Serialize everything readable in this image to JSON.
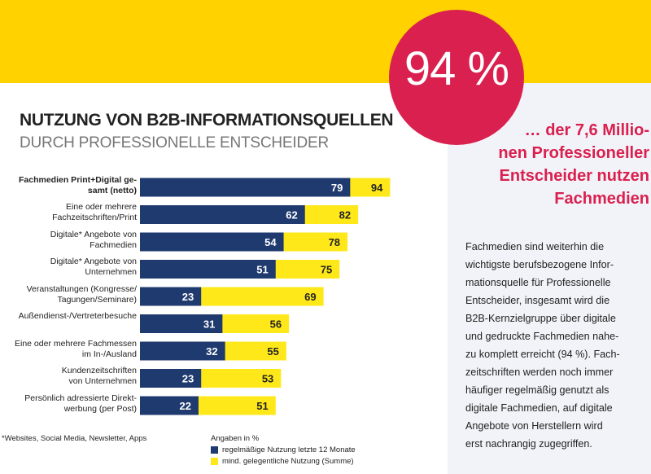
{
  "highlight": {
    "percent": "94 %",
    "headline_lines": [
      "… der 7,6 Millio-",
      "nen Professioneller",
      "Entscheider nutzen",
      "Fachmedien"
    ],
    "body_lines": [
      "Fachmedien sind weiterhin die",
      "wichtigste berufsbezogene Infor-",
      "mationsquelle für Professionelle",
      "Entscheider, insgesamt wird die",
      "B2B-Kernzielgruppe über digitale",
      "und gedruckte Fachmedien nahe-",
      "zu komplett erreicht (94 %). Fach-",
      "zeitschriften werden noch immer",
      "häufiger regelmäßig genutzt als",
      "digitale Fachmedien, auf digitale",
      "Angebote von Herstellern wird",
      "erst nachrangig zugegriffen."
    ]
  },
  "colors": {
    "accent_yellow": "#ffd200",
    "accent_pink": "#d9204f",
    "bar_blue": "#1f3a6e",
    "bar_yellow": "#ffe81a",
    "panel_bg": "#f2f3f8"
  },
  "chart_data": {
    "type": "bar",
    "orientation": "horizontal",
    "title": "NUTZUNG VON B2B-INFORMATIONSQUELLEN",
    "subtitle": "DURCH PROFESSIONELLE ENTSCHEIDER",
    "categories": [
      {
        "lines": [
          "Fachmedien Print+Digital ge-",
          "samt (netto)"
        ],
        "bold": true
      },
      {
        "lines": [
          "Eine oder mehrere",
          "Fachzeitschriften/Print"
        ],
        "bold": false
      },
      {
        "lines": [
          "Digitale* Angebote von",
          "Fachmedien"
        ],
        "bold": false
      },
      {
        "lines": [
          "Digitale* Angebote von",
          "Unternehmen"
        ],
        "bold": false
      },
      {
        "lines": [
          "Veranstaltungen (Kongresse/",
          "Tagungen/Seminare)"
        ],
        "bold": false
      },
      {
        "lines": [
          "Außendienst-/Vertreterbesuche"
        ],
        "bold": false
      },
      {
        "lines": [
          "Eine oder mehrere Fachmessen",
          "im In-/Ausland"
        ],
        "bold": false
      },
      {
        "lines": [
          "Kundenzeitschriften",
          "von Unternehmen"
        ],
        "bold": false
      },
      {
        "lines": [
          "Persönlich adressierte Direkt-",
          "werbung (per Post)"
        ],
        "bold": false
      }
    ],
    "series": [
      {
        "name": "regelmäßige Nutzung letzte 12 Monate",
        "color": "#1f3a6e",
        "values": [
          79,
          62,
          54,
          51,
          23,
          31,
          32,
          23,
          22
        ]
      },
      {
        "name": "mind. gelegentliche Nutzung (Summe)",
        "color": "#ffe81a",
        "values": [
          94,
          82,
          78,
          75,
          69,
          56,
          55,
          53,
          51
        ]
      }
    ],
    "unit_note": "Angaben in %",
    "footnote": "*Websites, Social Media, Newsletter, Apps",
    "xlim": [
      0,
      100
    ],
    "grid": false,
    "legend": "bottom"
  }
}
